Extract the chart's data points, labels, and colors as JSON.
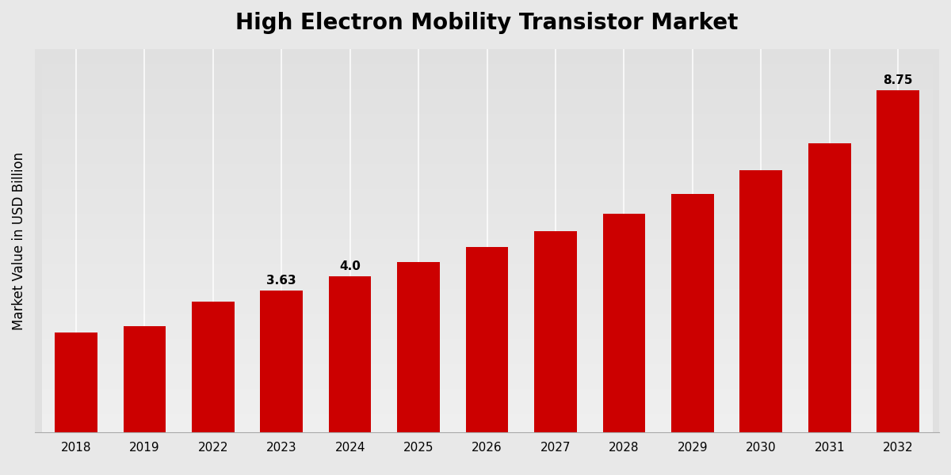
{
  "title": "High Electron Mobility Transistor Market",
  "ylabel": "Market Value in USD Billion",
  "categories": [
    "2018",
    "2019",
    "2022",
    "2023",
    "2024",
    "2025",
    "2026",
    "2027",
    "2028",
    "2029",
    "2030",
    "2031",
    "2032"
  ],
  "values": [
    2.55,
    2.72,
    3.35,
    3.63,
    4.0,
    4.35,
    4.75,
    5.15,
    5.6,
    6.1,
    6.7,
    7.4,
    8.75
  ],
  "bar_color": "#cc0000",
  "labeled_bars": {
    "2023": "3.63",
    "2024": "4.0",
    "2032": "8.75"
  },
  "ylim": [
    0,
    9.8
  ],
  "background_top": "#e8e8e8",
  "background_bottom": "#d0d0d0",
  "title_fontsize": 20,
  "label_fontsize": 11,
  "tick_fontsize": 11,
  "ylabel_fontsize": 12
}
